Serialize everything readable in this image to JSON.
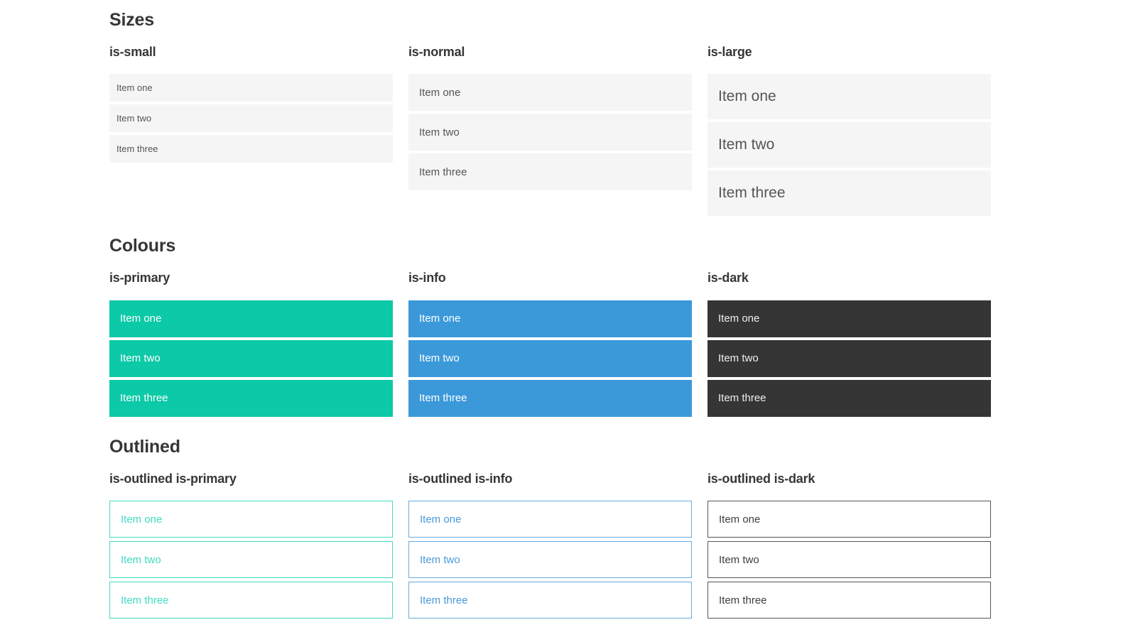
{
  "page": {
    "sections": [
      {
        "title": "Sizes",
        "groups": [
          {
            "label": "is-small",
            "items": [
              "Item one",
              "Item two",
              "Item three"
            ]
          },
          {
            "label": "is-normal",
            "items": [
              "Item one",
              "Item two",
              "Item three"
            ]
          },
          {
            "label": "is-large",
            "items": [
              "Item one",
              "Item two",
              "Item three"
            ]
          }
        ]
      },
      {
        "title": "Colours",
        "groups": [
          {
            "label": "is-primary",
            "items": [
              "Item one",
              "Item two",
              "Item three"
            ]
          },
          {
            "label": "is-info",
            "items": [
              "Item one",
              "Item two",
              "Item three"
            ]
          },
          {
            "label": "is-dark",
            "items": [
              "Item one",
              "Item two",
              "Item three"
            ]
          }
        ]
      },
      {
        "title": "Outlined",
        "groups": [
          {
            "label": "is-outlined is-primary",
            "items": [
              "Item one",
              "Item two",
              "Item three"
            ]
          },
          {
            "label": "is-outlined is-info",
            "items": [
              "Item one",
              "Item two",
              "Item three"
            ]
          },
          {
            "label": "is-outlined is-dark",
            "items": [
              "Item one",
              "Item two",
              "Item three"
            ]
          }
        ]
      }
    ]
  },
  "colors": {
    "primary": "#0cc9a7",
    "info": "#3b99da",
    "dark": "#353535",
    "light_item_background": "#f5f5f5",
    "item_text": "#555555",
    "heading_text": "#363636",
    "outlined_primary": "#41dcc2",
    "outlined_info_border": "#64ade1",
    "outlined_info_text": "#4a9ad8",
    "outlined_dark_border": "#54575b"
  }
}
